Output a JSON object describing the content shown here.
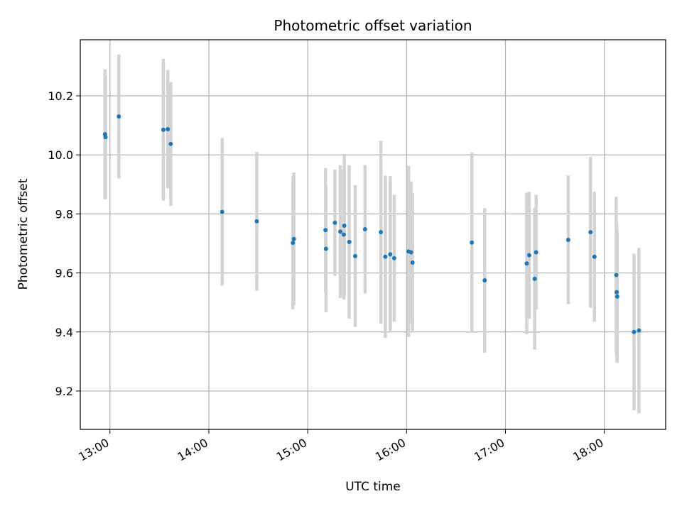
{
  "chart_data": {
    "type": "scatter",
    "title": "Photometric offset variation",
    "xlabel": "UTC time",
    "ylabel": "Photometric offset",
    "xlim": [
      12.7,
      18.62
    ],
    "ylim": [
      9.07,
      10.39
    ],
    "x_ticks": [
      13,
      14,
      15,
      16,
      17,
      18
    ],
    "x_tick_labels": [
      "13:00",
      "14:00",
      "15:00",
      "16:00",
      "17:00",
      "18:00"
    ],
    "y_ticks": [
      9.2,
      9.4,
      9.6,
      9.8,
      10.0,
      10.2
    ],
    "y_tick_labels": [
      "9.2",
      "9.4",
      "9.6",
      "9.8",
      "10.0",
      "10.2"
    ],
    "grid": true,
    "marker_color": "#1f77b4",
    "errorbar_color": "#d3d3d3",
    "points": [
      {
        "x": 12.95,
        "y": 10.07,
        "err": 0.22
      },
      {
        "x": 12.955,
        "y": 10.06,
        "err": 0.21
      },
      {
        "x": 13.09,
        "y": 10.13,
        "err": 0.21
      },
      {
        "x": 13.54,
        "y": 10.085,
        "err": 0.24
      },
      {
        "x": 13.585,
        "y": 10.087,
        "err": 0.2
      },
      {
        "x": 13.615,
        "y": 10.037,
        "err": 0.21
      },
      {
        "x": 14.135,
        "y": 9.807,
        "err": 0.25
      },
      {
        "x": 14.485,
        "y": 9.775,
        "err": 0.235
      },
      {
        "x": 14.85,
        "y": 9.702,
        "err": 0.225
      },
      {
        "x": 14.86,
        "y": 9.715,
        "err": 0.225
      },
      {
        "x": 15.18,
        "y": 9.745,
        "err": 0.21
      },
      {
        "x": 15.185,
        "y": 9.682,
        "err": 0.215
      },
      {
        "x": 15.275,
        "y": 9.77,
        "err": 0.18
      },
      {
        "x": 15.33,
        "y": 9.74,
        "err": 0.225
      },
      {
        "x": 15.365,
        "y": 9.73,
        "err": 0.22
      },
      {
        "x": 15.37,
        "y": 9.76,
        "err": 0.24
      },
      {
        "x": 15.42,
        "y": 9.705,
        "err": 0.26
      },
      {
        "x": 15.48,
        "y": 9.657,
        "err": 0.24
      },
      {
        "x": 15.58,
        "y": 9.748,
        "err": 0.218
      },
      {
        "x": 15.74,
        "y": 9.738,
        "err": 0.31
      },
      {
        "x": 15.785,
        "y": 9.655,
        "err": 0.275
      },
      {
        "x": 15.835,
        "y": 9.663,
        "err": 0.265
      },
      {
        "x": 15.875,
        "y": 9.65,
        "err": 0.215
      },
      {
        "x": 16.02,
        "y": 9.673,
        "err": 0.29
      },
      {
        "x": 16.045,
        "y": 9.67,
        "err": 0.24
      },
      {
        "x": 16.06,
        "y": 9.635,
        "err": 0.235
      },
      {
        "x": 16.66,
        "y": 9.703,
        "err": 0.305
      },
      {
        "x": 16.79,
        "y": 9.575,
        "err": 0.245
      },
      {
        "x": 17.215,
        "y": 9.632,
        "err": 0.24
      },
      {
        "x": 17.24,
        "y": 9.66,
        "err": 0.215
      },
      {
        "x": 17.295,
        "y": 9.58,
        "err": 0.24
      },
      {
        "x": 17.31,
        "y": 9.67,
        "err": 0.195
      },
      {
        "x": 17.635,
        "y": 9.712,
        "err": 0.218
      },
      {
        "x": 17.86,
        "y": 9.738,
        "err": 0.256
      },
      {
        "x": 17.9,
        "y": 9.655,
        "err": 0.22
      },
      {
        "x": 18.12,
        "y": 9.593,
        "err": 0.265
      },
      {
        "x": 18.125,
        "y": 9.535,
        "err": 0.235
      },
      {
        "x": 18.13,
        "y": 9.52,
        "err": 0.225
      },
      {
        "x": 18.3,
        "y": 9.4,
        "err": 0.265
      },
      {
        "x": 18.35,
        "y": 9.405,
        "err": 0.28
      }
    ]
  }
}
